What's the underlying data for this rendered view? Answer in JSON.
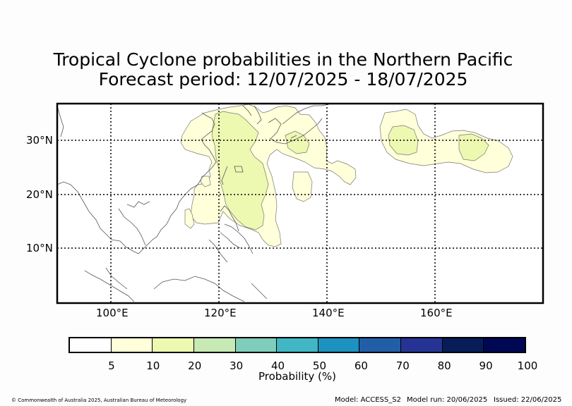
{
  "title_line1": "Tropical Cyclone probabilities in the Northern Pacific",
  "title_line2": "Forecast period: 12/07/2025 - 18/07/2025",
  "map": {
    "lat_labels": [
      "30°N",
      "20°N",
      "10°N"
    ],
    "lon_labels": [
      "100°E",
      "120°E",
      "140°E",
      "160°E"
    ],
    "extent": {
      "lon_min": 90,
      "lon_max": 180,
      "lat_min": 0,
      "lat_max": 37
    },
    "gridlines": "dotted",
    "colors": {
      "frame": "#000000",
      "coastline": "#555555",
      "contour_5": "#ffffd9",
      "contour_10": "#edf8b1",
      "contour_edge": "#777777"
    }
  },
  "colorbar": {
    "label": "Probability (%)",
    "ticks": [
      "5",
      "10",
      "20",
      "30",
      "40",
      "50",
      "60",
      "70",
      "80",
      "90",
      "100"
    ],
    "colors": [
      "#ffffff",
      "#ffffd9",
      "#edf8b1",
      "#c7e9b4",
      "#7fcdbb",
      "#41b6c4",
      "#1d91c0",
      "#225ea8",
      "#253494",
      "#081d58",
      "#000854"
    ]
  },
  "footer": {
    "copyright": "© Commonwealth of Australia 2025, Australian Bureau of Meteorology",
    "model": "Model: ACCESS_S2",
    "model_run": "Model run: 20/06/2025",
    "issued": "Issued: 22/06/2025"
  }
}
